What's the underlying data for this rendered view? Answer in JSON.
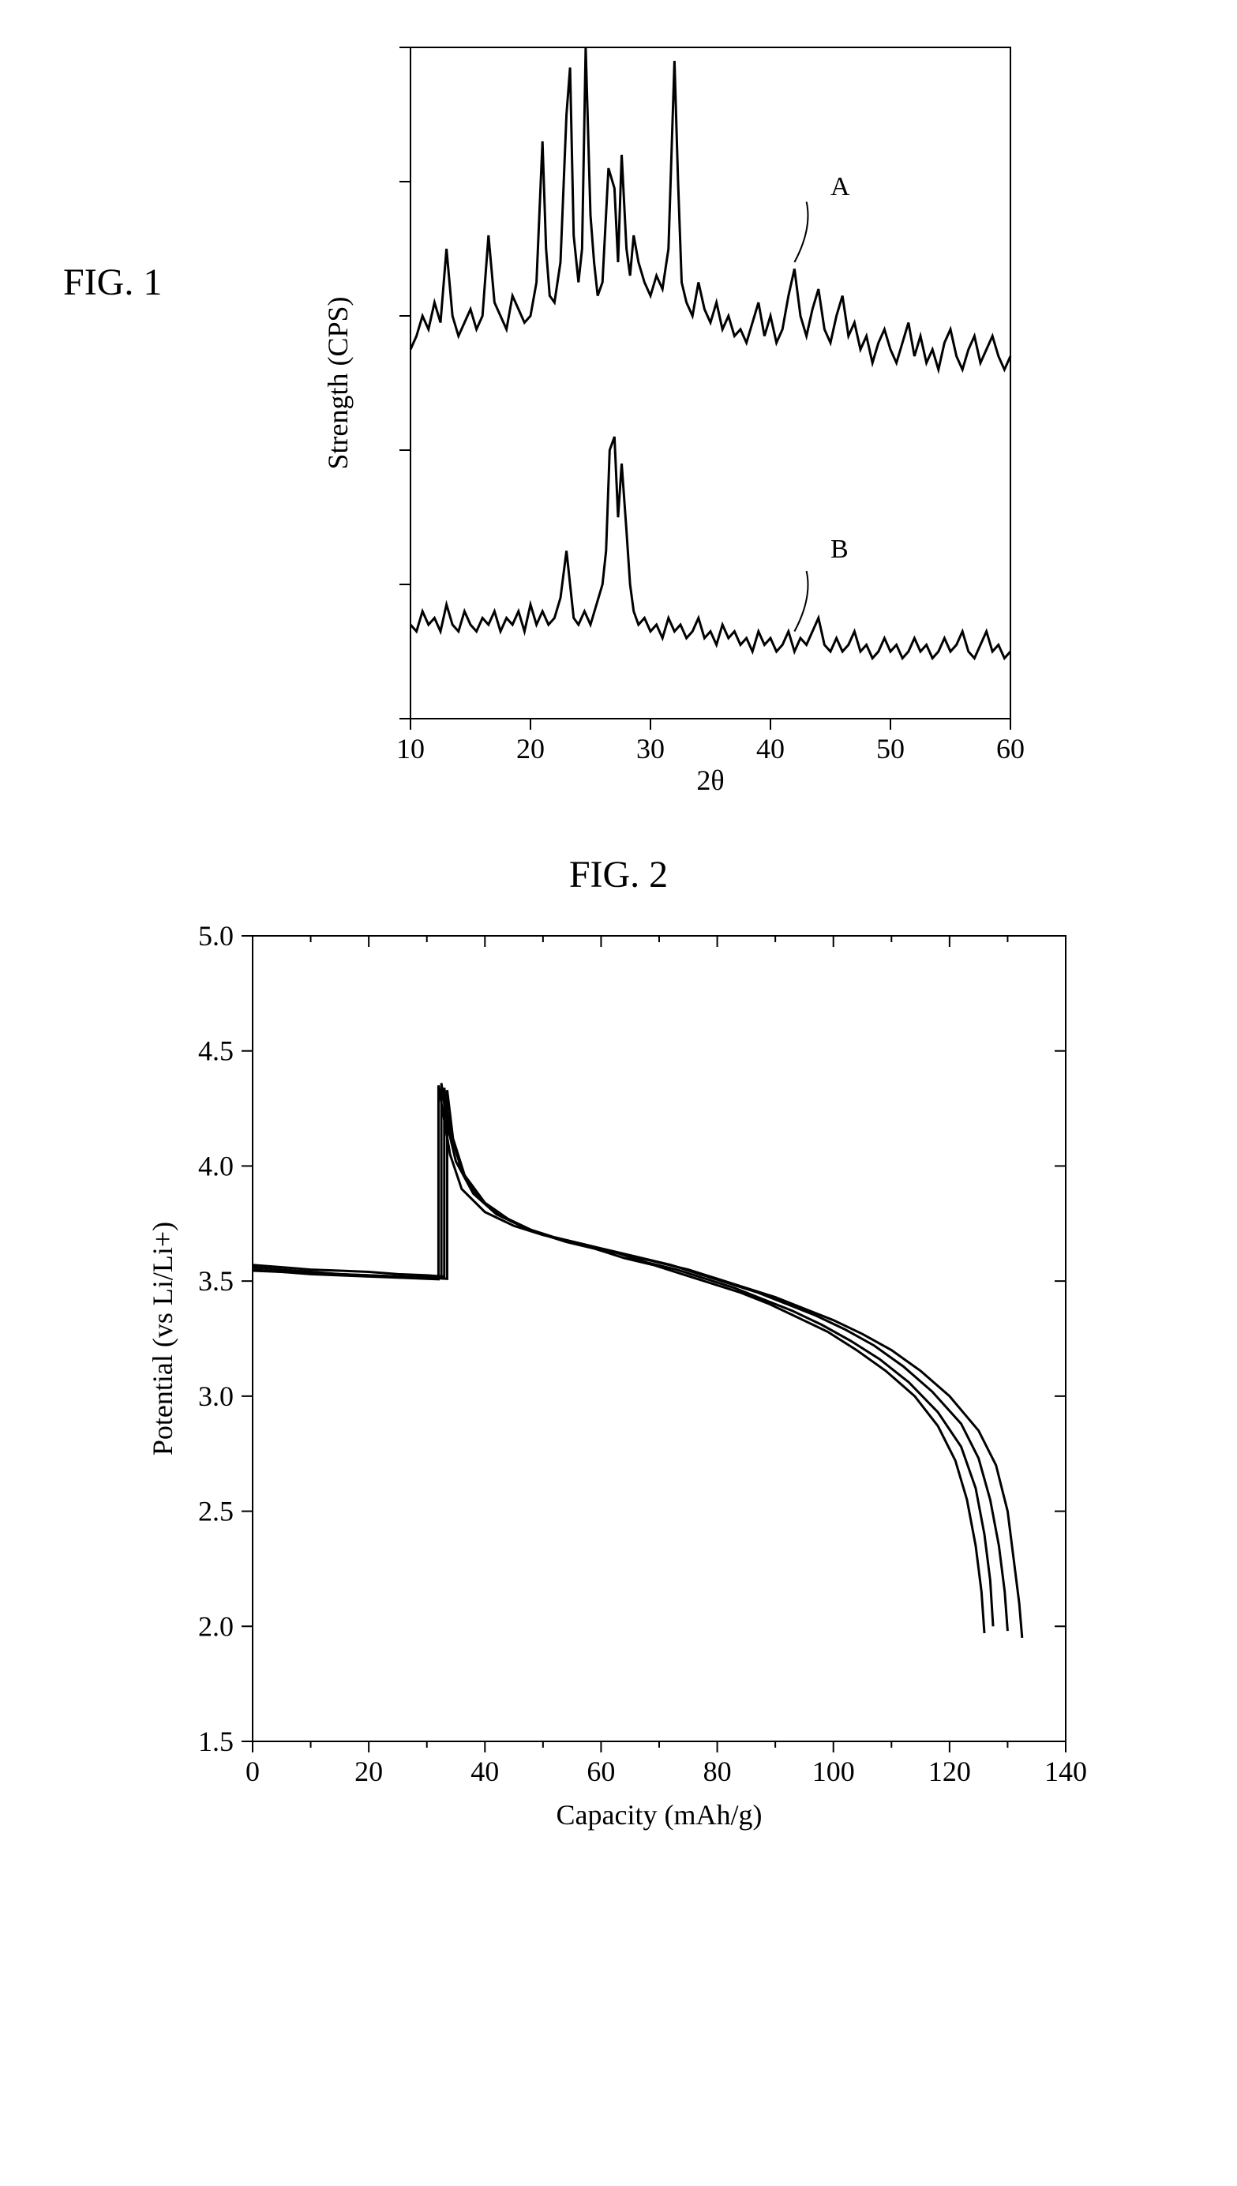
{
  "fig1": {
    "label": "FIG. 1",
    "type": "line",
    "xlabel": "2θ",
    "ylabel": "Strength (CPS)",
    "label_fontsize": 36,
    "tick_fontsize": 36,
    "xlim": [
      10,
      60
    ],
    "xticks": [
      10,
      20,
      30,
      40,
      50,
      60
    ],
    "ylim": [
      0,
      100
    ],
    "yticks_count": 6,
    "background_color": "#ffffff",
    "axis_color": "#000000",
    "line_color": "#000000",
    "line_width_A": 3,
    "line_width_B": 3,
    "annot_A": "A",
    "annot_B": "B",
    "annot_fontsize": 34,
    "seriesA": [
      [
        10,
        55
      ],
      [
        10.5,
        57
      ],
      [
        11,
        60
      ],
      [
        11.5,
        58
      ],
      [
        12,
        62
      ],
      [
        12.5,
        59
      ],
      [
        13,
        70
      ],
      [
        13.5,
        60
      ],
      [
        14,
        57
      ],
      [
        14.5,
        59
      ],
      [
        15,
        61
      ],
      [
        15.5,
        58
      ],
      [
        16,
        60
      ],
      [
        16.5,
        72
      ],
      [
        17,
        62
      ],
      [
        17.5,
        60
      ],
      [
        18,
        58
      ],
      [
        18.5,
        63
      ],
      [
        19,
        61
      ],
      [
        19.5,
        59
      ],
      [
        20,
        60
      ],
      [
        20.5,
        65
      ],
      [
        21,
        86
      ],
      [
        21.3,
        70
      ],
      [
        21.6,
        63
      ],
      [
        22,
        62
      ],
      [
        22.5,
        68
      ],
      [
        23,
        90
      ],
      [
        23.3,
        97
      ],
      [
        23.6,
        72
      ],
      [
        24,
        65
      ],
      [
        24.3,
        70
      ],
      [
        24.6,
        100
      ],
      [
        25,
        75
      ],
      [
        25.3,
        68
      ],
      [
        25.6,
        63
      ],
      [
        26,
        65
      ],
      [
        26.5,
        82
      ],
      [
        27,
        79
      ],
      [
        27.3,
        68
      ],
      [
        27.6,
        84
      ],
      [
        28,
        70
      ],
      [
        28.3,
        66
      ],
      [
        28.6,
        72
      ],
      [
        29,
        68
      ],
      [
        29.5,
        65
      ],
      [
        30,
        63
      ],
      [
        30.5,
        66
      ],
      [
        31,
        64
      ],
      [
        31.5,
        70
      ],
      [
        32,
        98
      ],
      [
        32.3,
        80
      ],
      [
        32.6,
        65
      ],
      [
        33,
        62
      ],
      [
        33.5,
        60
      ],
      [
        34,
        65
      ],
      [
        34.5,
        61
      ],
      [
        35,
        59
      ],
      [
        35.5,
        62
      ],
      [
        36,
        58
      ],
      [
        36.5,
        60
      ],
      [
        37,
        57
      ],
      [
        37.5,
        58
      ],
      [
        38,
        56
      ],
      [
        38.5,
        59
      ],
      [
        39,
        62
      ],
      [
        39.5,
        57
      ],
      [
        40,
        60
      ],
      [
        40.5,
        56
      ],
      [
        41,
        58
      ],
      [
        41.5,
        63
      ],
      [
        42,
        67
      ],
      [
        42.5,
        60
      ],
      [
        43,
        57
      ],
      [
        43.5,
        61
      ],
      [
        44,
        64
      ],
      [
        44.5,
        58
      ],
      [
        45,
        56
      ],
      [
        45.5,
        60
      ],
      [
        46,
        63
      ],
      [
        46.5,
        57
      ],
      [
        47,
        59
      ],
      [
        47.5,
        55
      ],
      [
        48,
        57
      ],
      [
        48.5,
        53
      ],
      [
        49,
        56
      ],
      [
        49.5,
        58
      ],
      [
        50,
        55
      ],
      [
        50.5,
        53
      ],
      [
        51,
        56
      ],
      [
        51.5,
        59
      ],
      [
        52,
        54
      ],
      [
        52.5,
        57
      ],
      [
        53,
        53
      ],
      [
        53.5,
        55
      ],
      [
        54,
        52
      ],
      [
        54.5,
        56
      ],
      [
        55,
        58
      ],
      [
        55.5,
        54
      ],
      [
        56,
        52
      ],
      [
        56.5,
        55
      ],
      [
        57,
        57
      ],
      [
        57.5,
        53
      ],
      [
        58,
        55
      ],
      [
        58.5,
        57
      ],
      [
        59,
        54
      ],
      [
        59.5,
        52
      ],
      [
        60,
        54
      ]
    ],
    "seriesB": [
      [
        10,
        14
      ],
      [
        10.5,
        13
      ],
      [
        11,
        16
      ],
      [
        11.5,
        14
      ],
      [
        12,
        15
      ],
      [
        12.5,
        13
      ],
      [
        13,
        17
      ],
      [
        13.5,
        14
      ],
      [
        14,
        13
      ],
      [
        14.5,
        16
      ],
      [
        15,
        14
      ],
      [
        15.5,
        13
      ],
      [
        16,
        15
      ],
      [
        16.5,
        14
      ],
      [
        17,
        16
      ],
      [
        17.5,
        13
      ],
      [
        18,
        15
      ],
      [
        18.5,
        14
      ],
      [
        19,
        16
      ],
      [
        19.5,
        13
      ],
      [
        20,
        17
      ],
      [
        20.5,
        14
      ],
      [
        21,
        16
      ],
      [
        21.5,
        14
      ],
      [
        22,
        15
      ],
      [
        22.5,
        18
      ],
      [
        23,
        25
      ],
      [
        23.3,
        20
      ],
      [
        23.6,
        15
      ],
      [
        24,
        14
      ],
      [
        24.5,
        16
      ],
      [
        25,
        14
      ],
      [
        25.5,
        17
      ],
      [
        26,
        20
      ],
      [
        26.3,
        25
      ],
      [
        26.6,
        40
      ],
      [
        27,
        42
      ],
      [
        27.3,
        30
      ],
      [
        27.6,
        38
      ],
      [
        28,
        28
      ],
      [
        28.3,
        20
      ],
      [
        28.6,
        16
      ],
      [
        29,
        14
      ],
      [
        29.5,
        15
      ],
      [
        30,
        13
      ],
      [
        30.5,
        14
      ],
      [
        31,
        12
      ],
      [
        31.5,
        15
      ],
      [
        32,
        13
      ],
      [
        32.5,
        14
      ],
      [
        33,
        12
      ],
      [
        33.5,
        13
      ],
      [
        34,
        15
      ],
      [
        34.5,
        12
      ],
      [
        35,
        13
      ],
      [
        35.5,
        11
      ],
      [
        36,
        14
      ],
      [
        36.5,
        12
      ],
      [
        37,
        13
      ],
      [
        37.5,
        11
      ],
      [
        38,
        12
      ],
      [
        38.5,
        10
      ],
      [
        39,
        13
      ],
      [
        39.5,
        11
      ],
      [
        40,
        12
      ],
      [
        40.5,
        10
      ],
      [
        41,
        11
      ],
      [
        41.5,
        13
      ],
      [
        42,
        10
      ],
      [
        42.5,
        12
      ],
      [
        43,
        11
      ],
      [
        43.5,
        13
      ],
      [
        44,
        15
      ],
      [
        44.5,
        11
      ],
      [
        45,
        10
      ],
      [
        45.5,
        12
      ],
      [
        46,
        10
      ],
      [
        46.5,
        11
      ],
      [
        47,
        13
      ],
      [
        47.5,
        10
      ],
      [
        48,
        11
      ],
      [
        48.5,
        9
      ],
      [
        49,
        10
      ],
      [
        49.5,
        12
      ],
      [
        50,
        10
      ],
      [
        50.5,
        11
      ],
      [
        51,
        9
      ],
      [
        51.5,
        10
      ],
      [
        52,
        12
      ],
      [
        52.5,
        10
      ],
      [
        53,
        11
      ],
      [
        53.5,
        9
      ],
      [
        54,
        10
      ],
      [
        54.5,
        12
      ],
      [
        55,
        10
      ],
      [
        55.5,
        11
      ],
      [
        56,
        13
      ],
      [
        56.5,
        10
      ],
      [
        57,
        9
      ],
      [
        57.5,
        11
      ],
      [
        58,
        13
      ],
      [
        58.5,
        10
      ],
      [
        59,
        11
      ],
      [
        59.5,
        9
      ],
      [
        60,
        10
      ]
    ]
  },
  "fig2": {
    "label": "FIG. 2",
    "type": "line",
    "xlabel": "Capacity (mAh/g)",
    "ylabel": "Potential (vs Li/Li+)",
    "label_fontsize": 36,
    "tick_fontsize": 36,
    "xlim": [
      0,
      140
    ],
    "xticks": [
      0,
      20,
      40,
      60,
      80,
      100,
      120,
      140
    ],
    "ylim": [
      1.5,
      5.0
    ],
    "yticks": [
      1.5,
      2.0,
      2.5,
      3.0,
      3.5,
      4.0,
      4.5,
      5.0
    ],
    "background_color": "#ffffff",
    "axis_color": "#000000",
    "line_color": "#000000",
    "line_width": 3,
    "curves": [
      [
        [
          0,
          3.55
        ],
        [
          5,
          3.54
        ],
        [
          10,
          3.53
        ],
        [
          15,
          3.525
        ],
        [
          20,
          3.52
        ],
        [
          25,
          3.515
        ],
        [
          30,
          3.51
        ],
        [
          32,
          3.508
        ],
        [
          32,
          4.35
        ],
        [
          33,
          4.2
        ],
        [
          34,
          4.05
        ],
        [
          36,
          3.9
        ],
        [
          40,
          3.8
        ],
        [
          45,
          3.74
        ],
        [
          50,
          3.7
        ],
        [
          55,
          3.67
        ],
        [
          60,
          3.64
        ],
        [
          65,
          3.61
        ],
        [
          70,
          3.58
        ],
        [
          75,
          3.55
        ],
        [
          80,
          3.51
        ],
        [
          85,
          3.47
        ],
        [
          90,
          3.43
        ],
        [
          95,
          3.38
        ],
        [
          100,
          3.33
        ],
        [
          105,
          3.27
        ],
        [
          110,
          3.2
        ],
        [
          115,
          3.11
        ],
        [
          120,
          3.0
        ],
        [
          125,
          2.85
        ],
        [
          128,
          2.7
        ],
        [
          130,
          2.5
        ],
        [
          131,
          2.3
        ],
        [
          132,
          2.1
        ],
        [
          132.5,
          1.95
        ]
      ],
      [
        [
          0,
          3.56
        ],
        [
          5,
          3.55
        ],
        [
          10,
          3.54
        ],
        [
          15,
          3.53
        ],
        [
          20,
          3.525
        ],
        [
          25,
          3.52
        ],
        [
          30,
          3.515
        ],
        [
          32.5,
          3.512
        ],
        [
          32.5,
          4.36
        ],
        [
          33.5,
          4.18
        ],
        [
          35,
          4.02
        ],
        [
          38,
          3.88
        ],
        [
          42,
          3.79
        ],
        [
          47,
          3.73
        ],
        [
          52,
          3.69
        ],
        [
          57,
          3.66
        ],
        [
          62,
          3.63
        ],
        [
          67,
          3.6
        ],
        [
          72,
          3.57
        ],
        [
          77,
          3.53
        ],
        [
          82,
          3.49
        ],
        [
          87,
          3.45
        ],
        [
          92,
          3.4
        ],
        [
          97,
          3.35
        ],
        [
          102,
          3.29
        ],
        [
          107,
          3.22
        ],
        [
          112,
          3.13
        ],
        [
          117,
          3.02
        ],
        [
          122,
          2.88
        ],
        [
          125,
          2.73
        ],
        [
          127,
          2.55
        ],
        [
          128.5,
          2.35
        ],
        [
          129.5,
          2.15
        ],
        [
          130,
          1.98
        ]
      ],
      [
        [
          0,
          3.57
        ],
        [
          5,
          3.56
        ],
        [
          10,
          3.55
        ],
        [
          15,
          3.545
        ],
        [
          20,
          3.54
        ],
        [
          25,
          3.53
        ],
        [
          30,
          3.525
        ],
        [
          33,
          3.52
        ],
        [
          33,
          4.34
        ],
        [
          34,
          4.15
        ],
        [
          36,
          3.98
        ],
        [
          39,
          3.86
        ],
        [
          43,
          3.78
        ],
        [
          48,
          3.72
        ],
        [
          53,
          3.68
        ],
        [
          58,
          3.65
        ],
        [
          63,
          3.62
        ],
        [
          68,
          3.58
        ],
        [
          73,
          3.55
        ],
        [
          78,
          3.51
        ],
        [
          83,
          3.47
        ],
        [
          88,
          3.42
        ],
        [
          93,
          3.37
        ],
        [
          98,
          3.31
        ],
        [
          103,
          3.24
        ],
        [
          108,
          3.16
        ],
        [
          113,
          3.06
        ],
        [
          118,
          2.93
        ],
        [
          122,
          2.78
        ],
        [
          124.5,
          2.6
        ],
        [
          126,
          2.4
        ],
        [
          127,
          2.2
        ],
        [
          127.5,
          2.0
        ]
      ],
      [
        [
          0,
          3.545
        ],
        [
          5,
          3.54
        ],
        [
          10,
          3.535
        ],
        [
          15,
          3.53
        ],
        [
          20,
          3.525
        ],
        [
          25,
          3.52
        ],
        [
          30,
          3.515
        ],
        [
          33.5,
          3.51
        ],
        [
          33.5,
          4.33
        ],
        [
          34.5,
          4.12
        ],
        [
          36.5,
          3.96
        ],
        [
          40,
          3.84
        ],
        [
          44,
          3.77
        ],
        [
          49,
          3.71
        ],
        [
          54,
          3.67
        ],
        [
          59,
          3.64
        ],
        [
          64,
          3.6
        ],
        [
          69,
          3.57
        ],
        [
          74,
          3.53
        ],
        [
          79,
          3.49
        ],
        [
          84,
          3.45
        ],
        [
          89,
          3.4
        ],
        [
          94,
          3.34
        ],
        [
          99,
          3.28
        ],
        [
          104,
          3.2
        ],
        [
          109,
          3.11
        ],
        [
          114,
          3.0
        ],
        [
          118,
          2.87
        ],
        [
          121,
          2.72
        ],
        [
          123,
          2.55
        ],
        [
          124.5,
          2.35
        ],
        [
          125.5,
          2.15
        ],
        [
          126,
          1.97
        ]
      ]
    ]
  }
}
